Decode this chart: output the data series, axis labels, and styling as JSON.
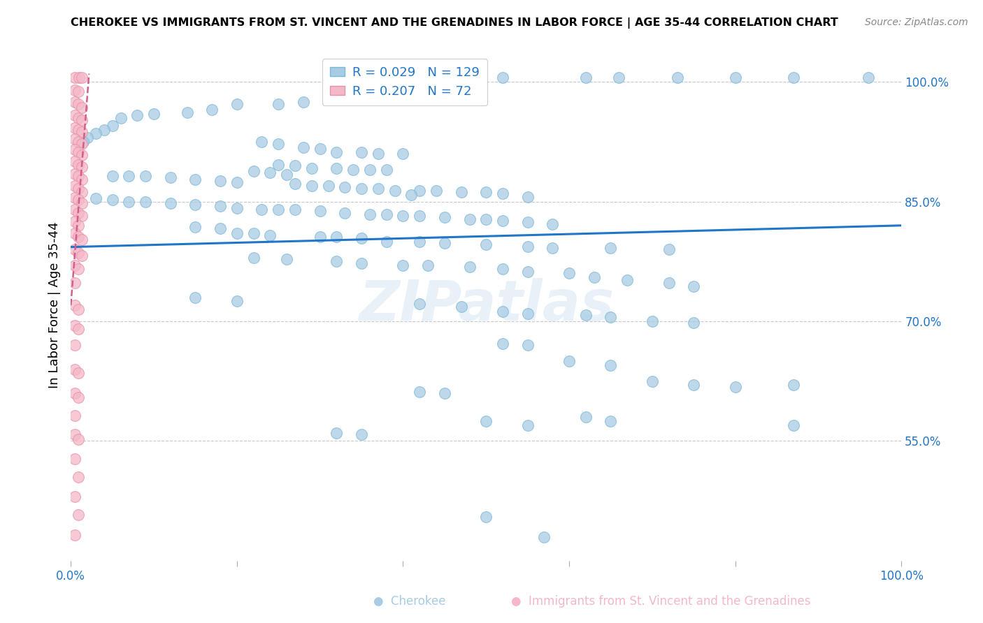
{
  "title": "CHEROKEE VS IMMIGRANTS FROM ST. VINCENT AND THE GRENADINES IN LABOR FORCE | AGE 35-44 CORRELATION CHART",
  "source": "Source: ZipAtlas.com",
  "ylabel": "In Labor Force | Age 35-44",
  "xlim": [
    0.0,
    1.0
  ],
  "ylim": [
    0.4,
    1.04
  ],
  "yticks_right": [
    0.55,
    0.7,
    0.85,
    1.0
  ],
  "yticklabels_right": [
    "55.0%",
    "70.0%",
    "85.0%",
    "100.0%"
  ],
  "blue_color": "#a8cce4",
  "pink_color": "#f4b8c8",
  "trend_blue": "#2176c7",
  "trend_pink_color": "#d45e8a",
  "legend_R_blue": "0.029",
  "legend_N_blue": "129",
  "legend_R_pink": "0.207",
  "legend_N_pink": "72",
  "watermark": "ZIPatlas",
  "blue_trend_x": [
    0.0,
    1.0
  ],
  "blue_trend_y": [
    0.793,
    0.82
  ],
  "pink_trend_x": [
    0.0,
    0.022
  ],
  "pink_trend_y": [
    0.72,
    1.01
  ],
  "blue_scatter": [
    [
      0.52,
      1.005
    ],
    [
      0.62,
      1.005
    ],
    [
      0.66,
      1.005
    ],
    [
      0.73,
      1.005
    ],
    [
      0.8,
      1.005
    ],
    [
      0.87,
      1.005
    ],
    [
      0.96,
      1.005
    ],
    [
      0.35,
      1.0
    ],
    [
      0.28,
      0.975
    ],
    [
      0.25,
      0.972
    ],
    [
      0.2,
      0.972
    ],
    [
      0.17,
      0.965
    ],
    [
      0.14,
      0.962
    ],
    [
      0.1,
      0.96
    ],
    [
      0.08,
      0.958
    ],
    [
      0.06,
      0.955
    ],
    [
      0.05,
      0.945
    ],
    [
      0.04,
      0.94
    ],
    [
      0.03,
      0.935
    ],
    [
      0.02,
      0.93
    ],
    [
      0.015,
      0.925
    ],
    [
      0.23,
      0.925
    ],
    [
      0.25,
      0.922
    ],
    [
      0.28,
      0.918
    ],
    [
      0.3,
      0.916
    ],
    [
      0.32,
      0.912
    ],
    [
      0.35,
      0.912
    ],
    [
      0.37,
      0.91
    ],
    [
      0.4,
      0.91
    ],
    [
      0.25,
      0.896
    ],
    [
      0.27,
      0.895
    ],
    [
      0.29,
      0.892
    ],
    [
      0.32,
      0.892
    ],
    [
      0.34,
      0.89
    ],
    [
      0.36,
      0.89
    ],
    [
      0.38,
      0.89
    ],
    [
      0.22,
      0.888
    ],
    [
      0.24,
      0.886
    ],
    [
      0.26,
      0.884
    ],
    [
      0.05,
      0.882
    ],
    [
      0.07,
      0.882
    ],
    [
      0.09,
      0.882
    ],
    [
      0.12,
      0.88
    ],
    [
      0.15,
      0.878
    ],
    [
      0.18,
      0.876
    ],
    [
      0.2,
      0.874
    ],
    [
      0.27,
      0.872
    ],
    [
      0.29,
      0.87
    ],
    [
      0.31,
      0.87
    ],
    [
      0.33,
      0.868
    ],
    [
      0.35,
      0.866
    ],
    [
      0.37,
      0.866
    ],
    [
      0.39,
      0.864
    ],
    [
      0.42,
      0.864
    ],
    [
      0.44,
      0.864
    ],
    [
      0.47,
      0.862
    ],
    [
      0.5,
      0.862
    ],
    [
      0.52,
      0.86
    ],
    [
      0.41,
      0.858
    ],
    [
      0.55,
      0.856
    ],
    [
      0.03,
      0.854
    ],
    [
      0.05,
      0.852
    ],
    [
      0.07,
      0.85
    ],
    [
      0.09,
      0.85
    ],
    [
      0.12,
      0.848
    ],
    [
      0.15,
      0.846
    ],
    [
      0.18,
      0.844
    ],
    [
      0.2,
      0.842
    ],
    [
      0.23,
      0.84
    ],
    [
      0.25,
      0.84
    ],
    [
      0.27,
      0.84
    ],
    [
      0.3,
      0.838
    ],
    [
      0.33,
      0.836
    ],
    [
      0.36,
      0.834
    ],
    [
      0.38,
      0.834
    ],
    [
      0.4,
      0.832
    ],
    [
      0.42,
      0.832
    ],
    [
      0.45,
      0.83
    ],
    [
      0.48,
      0.828
    ],
    [
      0.5,
      0.828
    ],
    [
      0.52,
      0.826
    ],
    [
      0.55,
      0.824
    ],
    [
      0.58,
      0.822
    ],
    [
      0.15,
      0.818
    ],
    [
      0.18,
      0.816
    ],
    [
      0.2,
      0.81
    ],
    [
      0.22,
      0.81
    ],
    [
      0.24,
      0.808
    ],
    [
      0.3,
      0.806
    ],
    [
      0.32,
      0.806
    ],
    [
      0.35,
      0.804
    ],
    [
      0.38,
      0.8
    ],
    [
      0.42,
      0.8
    ],
    [
      0.45,
      0.798
    ],
    [
      0.5,
      0.796
    ],
    [
      0.55,
      0.794
    ],
    [
      0.58,
      0.792
    ],
    [
      0.65,
      0.792
    ],
    [
      0.72,
      0.79
    ],
    [
      0.22,
      0.78
    ],
    [
      0.26,
      0.778
    ],
    [
      0.32,
      0.775
    ],
    [
      0.35,
      0.773
    ],
    [
      0.4,
      0.77
    ],
    [
      0.43,
      0.77
    ],
    [
      0.48,
      0.768
    ],
    [
      0.52,
      0.766
    ],
    [
      0.55,
      0.762
    ],
    [
      0.6,
      0.76
    ],
    [
      0.63,
      0.755
    ],
    [
      0.67,
      0.752
    ],
    [
      0.72,
      0.748
    ],
    [
      0.75,
      0.744
    ],
    [
      0.15,
      0.73
    ],
    [
      0.2,
      0.725
    ],
    [
      0.42,
      0.722
    ],
    [
      0.47,
      0.718
    ],
    [
      0.52,
      0.712
    ],
    [
      0.55,
      0.71
    ],
    [
      0.62,
      0.708
    ],
    [
      0.65,
      0.705
    ],
    [
      0.7,
      0.7
    ],
    [
      0.75,
      0.698
    ],
    [
      0.52,
      0.672
    ],
    [
      0.55,
      0.67
    ],
    [
      0.6,
      0.65
    ],
    [
      0.65,
      0.645
    ],
    [
      0.7,
      0.625
    ],
    [
      0.75,
      0.62
    ],
    [
      0.8,
      0.618
    ],
    [
      0.87,
      0.62
    ],
    [
      0.42,
      0.612
    ],
    [
      0.45,
      0.61
    ],
    [
      0.5,
      0.575
    ],
    [
      0.55,
      0.57
    ],
    [
      0.62,
      0.58
    ],
    [
      0.65,
      0.575
    ],
    [
      0.32,
      0.56
    ],
    [
      0.35,
      0.558
    ],
    [
      0.87,
      0.57
    ],
    [
      0.5,
      0.455
    ],
    [
      0.57,
      0.43
    ]
  ],
  "pink_scatter": [
    [
      0.005,
      1.005
    ],
    [
      0.01,
      1.005
    ],
    [
      0.013,
      1.005
    ],
    [
      0.005,
      0.99
    ],
    [
      0.009,
      0.988
    ],
    [
      0.005,
      0.975
    ],
    [
      0.009,
      0.972
    ],
    [
      0.013,
      0.968
    ],
    [
      0.005,
      0.958
    ],
    [
      0.009,
      0.955
    ],
    [
      0.013,
      0.952
    ],
    [
      0.005,
      0.942
    ],
    [
      0.009,
      0.94
    ],
    [
      0.013,
      0.937
    ],
    [
      0.005,
      0.928
    ],
    [
      0.009,
      0.925
    ],
    [
      0.013,
      0.922
    ],
    [
      0.005,
      0.915
    ],
    [
      0.009,
      0.912
    ],
    [
      0.013,
      0.908
    ],
    [
      0.005,
      0.9
    ],
    [
      0.009,
      0.896
    ],
    [
      0.013,
      0.893
    ],
    [
      0.005,
      0.885
    ],
    [
      0.009,
      0.882
    ],
    [
      0.013,
      0.878
    ],
    [
      0.005,
      0.87
    ],
    [
      0.009,
      0.866
    ],
    [
      0.013,
      0.862
    ],
    [
      0.005,
      0.855
    ],
    [
      0.009,
      0.852
    ],
    [
      0.013,
      0.848
    ],
    [
      0.005,
      0.84
    ],
    [
      0.009,
      0.836
    ],
    [
      0.013,
      0.832
    ],
    [
      0.005,
      0.825
    ],
    [
      0.009,
      0.82
    ],
    [
      0.005,
      0.81
    ],
    [
      0.009,
      0.806
    ],
    [
      0.013,
      0.802
    ],
    [
      0.005,
      0.79
    ],
    [
      0.009,
      0.786
    ],
    [
      0.013,
      0.782
    ],
    [
      0.005,
      0.77
    ],
    [
      0.009,
      0.766
    ],
    [
      0.005,
      0.748
    ],
    [
      0.005,
      0.72
    ],
    [
      0.009,
      0.715
    ],
    [
      0.005,
      0.695
    ],
    [
      0.009,
      0.69
    ],
    [
      0.005,
      0.67
    ],
    [
      0.005,
      0.64
    ],
    [
      0.009,
      0.635
    ],
    [
      0.005,
      0.61
    ],
    [
      0.009,
      0.605
    ],
    [
      0.005,
      0.582
    ],
    [
      0.005,
      0.558
    ],
    [
      0.009,
      0.552
    ],
    [
      0.005,
      0.528
    ],
    [
      0.009,
      0.505
    ],
    [
      0.005,
      0.48
    ],
    [
      0.009,
      0.458
    ],
    [
      0.005,
      0.432
    ]
  ]
}
